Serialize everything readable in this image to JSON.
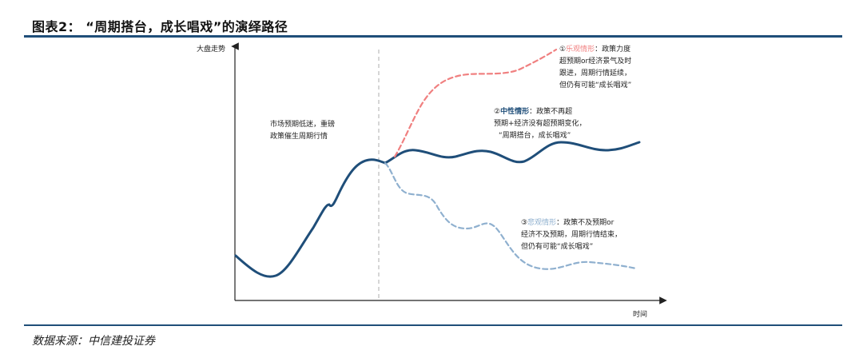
{
  "title": "图表2：  “周期搭台，成长唱戏”的演绎路径",
  "source": "数据来源：中信建投证券",
  "axes": {
    "y_label": "大盘走势",
    "x_label": "时间"
  },
  "annotations": {
    "market": {
      "line1": "市场预期低迷，重磅",
      "line2": "政策催生周期行情"
    },
    "optimistic": {
      "marker": "①",
      "name": "乐观情形",
      "line1": "：政策力度",
      "line2": "超预期or经济景气及时",
      "line3": "跟进，周期行情延续，",
      "line4": "但仍有可能“成长唱戏”"
    },
    "neutral": {
      "marker": "②",
      "name": "中性情形",
      "line1": "：政策不再超",
      "line2": "预期+经济没有超预期变化，",
      "line3": "“周期搭台，成长唱戏”"
    },
    "pessimistic": {
      "marker": "③",
      "name": "悲观情形",
      "line1": "：政策不及预期or",
      "line2": "经济不及预期，周期行情结束，",
      "line3": "但仍有可能“成长唱戏”"
    }
  },
  "colors": {
    "main": "#1f4e79",
    "optimistic": "#f08080",
    "pessimistic": "#8fb0cf",
    "divider": "#bbbbbb",
    "rule": "#1f4e79"
  }
}
